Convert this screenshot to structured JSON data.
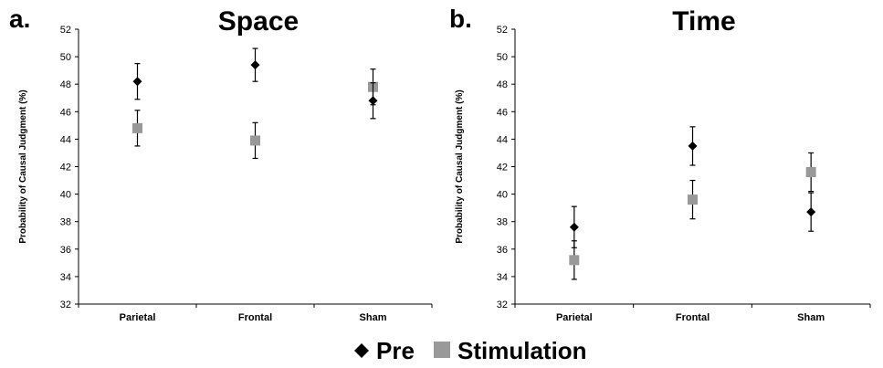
{
  "legend": {
    "pre_label": "Pre",
    "stim_label": "Stimulation",
    "pre_color": "#000000",
    "stim_color": "#999999"
  },
  "chart_data": [
    {
      "type": "scatter",
      "panel_letter": "a.",
      "title": "Space",
      "ylabel": "Probability of Causal Judgment (%)",
      "xlabel": "",
      "categories": [
        "Parietal",
        "Frontal",
        "Sham"
      ],
      "ylim": [
        32,
        52
      ],
      "yticks": [
        32,
        34,
        36,
        38,
        40,
        42,
        44,
        46,
        48,
        50,
        52
      ],
      "grid": false,
      "series": [
        {
          "name": "Pre",
          "marker": "diamond",
          "color": "#000000",
          "values": [
            48.2,
            49.4,
            46.8
          ],
          "errors": [
            1.3,
            1.2,
            1.3
          ]
        },
        {
          "name": "Stimulation",
          "marker": "square",
          "color": "#999999",
          "values": [
            44.8,
            43.9,
            47.8
          ],
          "errors": [
            1.3,
            1.3,
            1.3
          ]
        }
      ]
    },
    {
      "type": "scatter",
      "panel_letter": "b.",
      "title": "Time",
      "ylabel": "Probability of Causal Judgment (%)",
      "xlabel": "",
      "categories": [
        "Parietal",
        "Frontal",
        "Sham"
      ],
      "ylim": [
        32,
        52
      ],
      "yticks": [
        32,
        34,
        36,
        38,
        40,
        42,
        44,
        46,
        48,
        50,
        52
      ],
      "grid": false,
      "series": [
        {
          "name": "Pre",
          "marker": "diamond",
          "color": "#000000",
          "values": [
            37.6,
            43.5,
            38.7
          ],
          "errors": [
            1.5,
            1.4,
            1.4
          ]
        },
        {
          "name": "Stimulation",
          "marker": "square",
          "color": "#999999",
          "values": [
            35.2,
            39.6,
            41.6
          ],
          "errors": [
            1.4,
            1.4,
            1.4
          ]
        }
      ]
    }
  ]
}
